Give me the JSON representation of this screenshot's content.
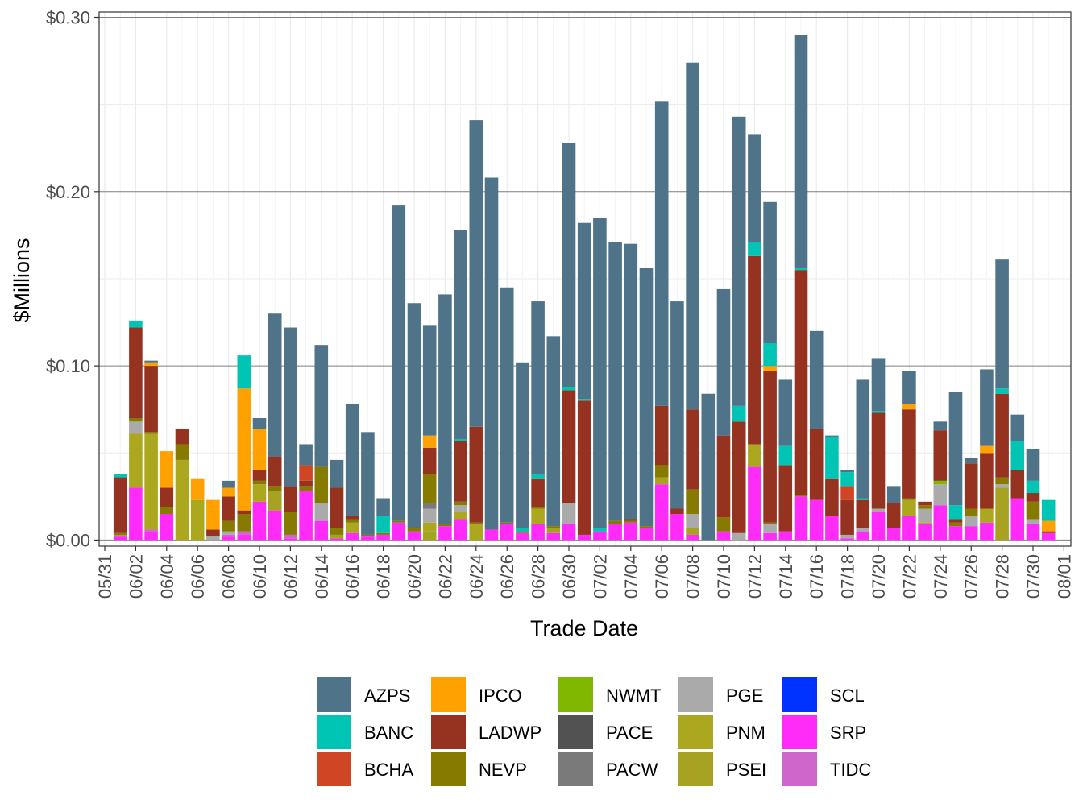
{
  "chart_data": {
    "type": "stacked-bar",
    "xlabel": "Trade Date",
    "ylabel": "$Millions",
    "ylim": [
      -0.0035,
      0.303
    ],
    "y_ticks": [
      0.0,
      0.1,
      0.2,
      0.3
    ],
    "y_tick_labels": [
      "$0.00",
      "$0.10",
      "$0.20",
      "$0.30"
    ],
    "x_tick_labels": [
      "05/31",
      "06/02",
      "06/04",
      "06/06",
      "06/08",
      "06/10",
      "06/12",
      "06/14",
      "06/16",
      "06/18",
      "06/20",
      "06/22",
      "06/24",
      "06/26",
      "06/28",
      "06/30",
      "07/02",
      "07/04",
      "07/06",
      "07/08",
      "07/10",
      "07/12",
      "07/14",
      "07/16",
      "07/18",
      "07/20",
      "07/22",
      "07/24",
      "07/26",
      "07/28",
      "07/30",
      "08/01"
    ],
    "categories": [
      "06/01",
      "06/02",
      "06/03",
      "06/04",
      "06/05",
      "06/06",
      "06/07",
      "06/08",
      "06/09",
      "06/10",
      "06/11",
      "06/12",
      "06/13",
      "06/14",
      "06/15",
      "06/16",
      "06/17",
      "06/18",
      "06/19",
      "06/20",
      "06/21",
      "06/22",
      "06/23",
      "06/24",
      "06/25",
      "06/26",
      "06/27",
      "06/28",
      "06/29",
      "06/30",
      "07/01",
      "07/02",
      "07/03",
      "07/04",
      "07/05",
      "07/06",
      "07/07",
      "07/08",
      "07/09",
      "07/10",
      "07/11",
      "07/12",
      "07/13",
      "07/14",
      "07/15",
      "07/16",
      "07/17",
      "07/18",
      "07/19",
      "07/20",
      "07/21",
      "07/22",
      "07/23",
      "07/24",
      "07/25",
      "07/26",
      "07/27",
      "07/28",
      "07/29",
      "07/30",
      "07/31"
    ],
    "stack_order": [
      "SRP",
      "TIDC",
      "PSEI",
      "PNM",
      "PGE",
      "PACW",
      "PACE",
      "NWMT",
      "NEVP",
      "LADWP",
      "BCHA",
      "IPCO",
      "BANC",
      "AZPS"
    ],
    "series": [
      {
        "name": "AZPS",
        "color": "#4f7489",
        "values": [
          0,
          0,
          0.001,
          0,
          0,
          0,
          0,
          0.004,
          0,
          0.006,
          0.082,
          0.091,
          0.012,
          0.07,
          0.016,
          0.064,
          0.059,
          0.01,
          0.181,
          0.129,
          0.063,
          0.132,
          0.12,
          0.176,
          0.202,
          0.135,
          0.095,
          0.099,
          0.109,
          0.14,
          0.101,
          0.178,
          0.16,
          0.158,
          0.148,
          0.175,
          0.119,
          0.199,
          0.084,
          0.084,
          0.166,
          0.062,
          0.081,
          0.038,
          0.134,
          0.056,
          0.001,
          0.001,
          0.068,
          0.03,
          0.01,
          0.019,
          0,
          0.005,
          0.065,
          0.003,
          0.044,
          0.074,
          0.015,
          0.018,
          0
        ]
      },
      {
        "name": "BANC",
        "color": "#00c5b4",
        "values": [
          0.002,
          0.004,
          0,
          0,
          0,
          0,
          0,
          0,
          0.019,
          0,
          0,
          0,
          0,
          0,
          0,
          0,
          0,
          0.01,
          0,
          0,
          0,
          0,
          0.001,
          0,
          0,
          0,
          0.002,
          0.003,
          0,
          0.002,
          0.001,
          0.002,
          0,
          0,
          0,
          0,
          0,
          0,
          0,
          0,
          0.009,
          0.008,
          0.013,
          0.011,
          0.001,
          0,
          0.024,
          0.008,
          0.001,
          0.001,
          0,
          0,
          0,
          0,
          0.008,
          0,
          0,
          0.003,
          0.017,
          0.007,
          0.012
        ]
      },
      {
        "name": "BCHA",
        "color": "#d04524",
        "values": [
          0,
          0,
          0,
          0,
          0,
          0,
          0,
          0,
          0,
          0,
          0,
          0,
          0.009,
          0,
          0,
          0,
          0,
          0,
          0,
          0,
          0,
          0,
          0,
          0,
          0,
          0,
          0,
          0,
          0,
          0,
          0,
          0,
          0,
          0,
          0,
          0,
          0,
          0,
          0,
          0,
          0,
          0,
          0,
          0,
          0,
          0,
          0,
          0.008,
          0,
          0,
          0,
          0,
          0,
          0,
          0,
          0,
          0,
          0,
          0,
          0,
          0
        ]
      },
      {
        "name": "IPCO",
        "color": "#ffa100",
        "values": [
          0,
          0,
          0.002,
          0.021,
          0,
          0.012,
          0.017,
          0.005,
          0.07,
          0.024,
          0,
          0,
          0,
          0,
          0,
          0,
          0,
          0,
          0,
          0,
          0.007,
          0,
          0,
          0,
          0,
          0,
          0,
          0,
          0,
          0,
          0,
          0,
          0,
          0,
          0,
          0,
          0,
          0,
          0,
          0,
          0,
          0,
          0.003,
          0,
          0,
          0,
          0,
          0,
          0,
          0,
          0,
          0.003,
          0,
          0,
          0,
          0,
          0.004,
          0,
          0,
          0,
          0.006
        ]
      },
      {
        "name": "LADWP",
        "color": "#953220",
        "values": [
          0.032,
          0.052,
          0.038,
          0.011,
          0.009,
          0,
          0.004,
          0.014,
          0.002,
          0.006,
          0.017,
          0.015,
          0.003,
          0,
          0.023,
          0.002,
          0,
          0,
          0,
          0,
          0.015,
          0,
          0.035,
          0.055,
          0,
          0,
          0,
          0.016,
          0,
          0.065,
          0.077,
          0,
          0,
          0.001,
          0,
          0.034,
          0.003,
          0.046,
          0,
          0.047,
          0.064,
          0.108,
          0.087,
          0.038,
          0.129,
          0.041,
          0.021,
          0.02,
          0.016,
          0.055,
          0.014,
          0.051,
          0.002,
          0.029,
          0.002,
          0.026,
          0.032,
          0.048,
          0.016,
          0.005,
          0.001
        ]
      },
      {
        "name": "NEVP",
        "color": "#867a00",
        "values": [
          0.001,
          0.002,
          0.001,
          0.004,
          0.009,
          0,
          0,
          0.006,
          0.01,
          0.002,
          0.003,
          0.013,
          0.003,
          0.021,
          0.004,
          0.002,
          0.001,
          0.001,
          0.001,
          0.002,
          0.017,
          0.001,
          0.002,
          0.001,
          0,
          0.001,
          0.001,
          0.001,
          0.001,
          0,
          0,
          0,
          0.002,
          0.001,
          0.001,
          0.007,
          0,
          0.014,
          0,
          0.008,
          0,
          0,
          0.001,
          0,
          0.001,
          0,
          0,
          0,
          0,
          0,
          0,
          0.001,
          0.002,
          0,
          0.002,
          0.004,
          0,
          0.004,
          0,
          0.01,
          0
        ]
      },
      {
        "name": "NWMT",
        "color": "#80b800",
        "values": [
          0,
          0,
          0,
          0,
          0,
          0,
          0,
          0,
          0,
          0,
          0,
          0,
          0,
          0,
          0,
          0,
          0,
          0,
          0,
          0,
          0,
          0,
          0,
          0,
          0,
          0,
          0,
          0,
          0,
          0,
          0,
          0,
          0,
          0,
          0,
          0,
          0,
          0,
          0,
          0,
          0,
          0,
          0,
          0,
          0,
          0,
          0,
          0,
          0,
          0,
          0,
          0,
          0,
          0.002,
          0,
          0,
          0,
          0,
          0,
          0,
          0
        ]
      },
      {
        "name": "PACE",
        "color": "#525252",
        "values": [
          0,
          0,
          0,
          0,
          0,
          0,
          0,
          0,
          0,
          0,
          0,
          0,
          0,
          0,
          0,
          0,
          0,
          0,
          0,
          0,
          0,
          0,
          0,
          0,
          0,
          0,
          0,
          0,
          0,
          0,
          0,
          0,
          0,
          0,
          0,
          0,
          0,
          0,
          0,
          0,
          0,
          0,
          0,
          0,
          0,
          0,
          0,
          0,
          0,
          0,
          0,
          0,
          0,
          0,
          0,
          0,
          0,
          0,
          0,
          0,
          0
        ]
      },
      {
        "name": "PACW",
        "color": "#7a7a7a",
        "values": [
          0,
          0,
          0,
          0,
          0,
          0,
          0,
          0,
          0,
          0,
          0,
          0,
          0,
          0,
          0,
          0,
          0,
          0,
          0,
          0,
          0.003,
          0,
          0,
          0,
          0,
          0,
          0,
          0,
          0,
          0,
          0,
          0,
          0,
          0,
          0,
          0,
          0,
          0,
          0,
          0,
          0,
          0,
          0,
          0,
          0,
          0,
          0,
          0,
          0,
          0,
          0,
          0,
          0,
          0,
          0,
          0,
          0,
          0,
          0,
          0,
          0
        ]
      },
      {
        "name": "PGE",
        "color": "#aaaaaa",
        "values": [
          0,
          0.007,
          0,
          0,
          0,
          0,
          0.002,
          0.002,
          0,
          0,
          0,
          0,
          0,
          0.01,
          0,
          0,
          0,
          0,
          0,
          0,
          0.008,
          0,
          0.004,
          0,
          0,
          0,
          0,
          0,
          0,
          0.012,
          0,
          0,
          0,
          0,
          0,
          0,
          0,
          0.008,
          0,
          0,
          0.004,
          0,
          0.005,
          0,
          0,
          0,
          0,
          0.002,
          0.002,
          0.002,
          0,
          0,
          0.008,
          0.012,
          0,
          0.006,
          0,
          0.002,
          0,
          0.003,
          0
        ]
      },
      {
        "name": "PNM",
        "color": "#aba81f",
        "values": [
          0,
          0.031,
          0.055,
          0,
          0.046,
          0.023,
          0,
          0,
          0,
          0.01,
          0,
          0,
          0,
          0,
          0,
          0.006,
          0,
          0,
          0,
          0,
          0.005,
          0,
          0.004,
          0.009,
          0,
          0,
          0,
          0.009,
          0,
          0,
          0,
          0,
          0,
          0,
          0,
          0,
          0,
          0,
          0,
          0,
          0,
          0.013,
          0,
          0,
          0,
          0,
          0,
          0,
          0,
          0,
          0,
          0.009,
          0.001,
          0,
          0,
          0,
          0.008,
          0,
          0,
          0,
          0
        ]
      },
      {
        "name": "PSEI",
        "color": "#a8a222",
        "values": [
          0.001,
          0,
          0,
          0,
          0,
          0,
          0,
          0,
          0,
          0,
          0.011,
          0,
          0,
          0,
          0.002,
          0,
          0,
          0,
          0,
          0,
          0.005,
          0,
          0,
          0,
          0,
          0,
          0,
          0,
          0.003,
          0,
          0,
          0,
          0,
          0,
          0,
          0.004,
          0,
          0.004,
          0,
          0,
          0,
          0,
          0,
          0,
          0,
          0,
          0,
          0,
          0,
          0,
          0,
          0,
          0,
          0,
          0,
          0,
          0,
          0.03,
          0,
          0,
          0
        ]
      },
      {
        "name": "TIDC",
        "color": "#ce66cc",
        "values": [
          0,
          0,
          0.001,
          0,
          0,
          0,
          0,
          0.001,
          0.002,
          0,
          0,
          0.002,
          0,
          0,
          0,
          0,
          0,
          0,
          0,
          0,
          0,
          0,
          0,
          0,
          0,
          0,
          0,
          0,
          0,
          0,
          0,
          0,
          0,
          0,
          0,
          0,
          0,
          0,
          0,
          0,
          0,
          0,
          0,
          0,
          0,
          0,
          0,
          0,
          0,
          0,
          0,
          0,
          0,
          0,
          0,
          0,
          0,
          0,
          0,
          0,
          0
        ]
      },
      {
        "name": "SRP",
        "color": "#ff2cf9",
        "values": [
          0.002,
          0.03,
          0.005,
          0.015,
          0,
          0,
          0,
          0.002,
          0.003,
          0.022,
          0.017,
          0.001,
          0.028,
          0.011,
          0.001,
          0.004,
          0.002,
          0.003,
          0.01,
          0.005,
          0,
          0.008,
          0.012,
          0,
          0.006,
          0.009,
          0.004,
          0.009,
          0.004,
          0.009,
          0.003,
          0.005,
          0.009,
          0.01,
          0.007,
          0.032,
          0.015,
          0.003,
          0,
          0.005,
          0,
          0.042,
          0.004,
          0.005,
          0.025,
          0.023,
          0.014,
          0.001,
          0.005,
          0.016,
          0.007,
          0.014,
          0.009,
          0.02,
          0.008,
          0.008,
          0.01,
          0,
          0.024,
          0.009,
          0.004
        ]
      }
    ],
    "legend": {
      "position": "bottom",
      "columns": [
        [
          "AZPS",
          "BANC",
          "BCHA"
        ],
        [
          "IPCO",
          "LADWP",
          "NEVP"
        ],
        [
          "NWMT",
          "PACE",
          "PACW"
        ],
        [
          "PGE",
          "PNM",
          "PSEI"
        ],
        [
          "SCL",
          "SRP",
          "TIDC"
        ]
      ],
      "colors": {
        "AZPS": "#4f7489",
        "BANC": "#00c5b4",
        "BCHA": "#d04524",
        "IPCO": "#ffa100",
        "LADWP": "#953220",
        "NEVP": "#867a00",
        "NWMT": "#80b800",
        "PACE": "#525252",
        "PACW": "#7a7a7a",
        "PGE": "#aaaaaa",
        "PNM": "#aba81f",
        "PSEI": "#a8a222",
        "SCL": "#0033ff",
        "SRP": "#ff2cf9",
        "TIDC": "#ce66cc"
      }
    }
  }
}
